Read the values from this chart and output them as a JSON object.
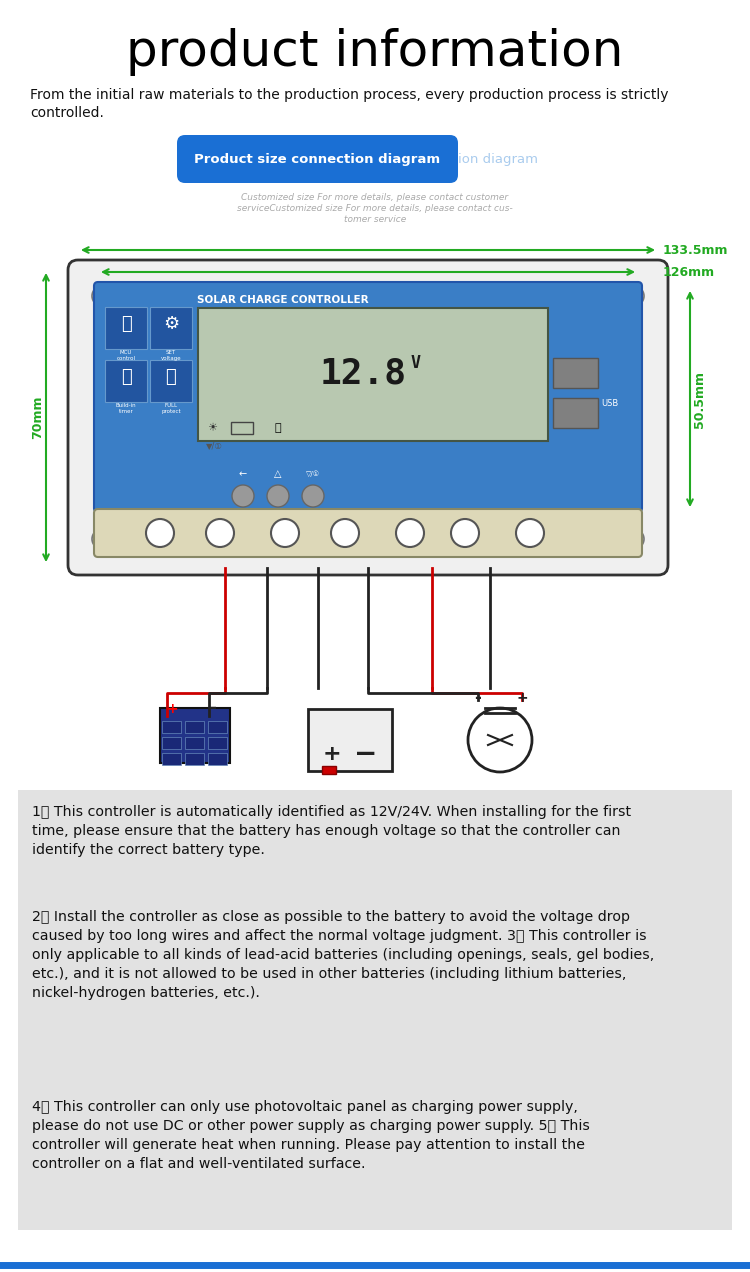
{
  "title": "product information",
  "title_fontsize": 36,
  "bg_color": "#ffffff",
  "intro_text": "From the initial raw materials to the production process, every production process is strictly\ncontrolled.",
  "button_text": "Product size connection diagram",
  "button_color": "#1a6fd4",
  "button_text_color": "#ffffff",
  "customized_text": "Customized size For more details, please contact customer\nserviceCustomized size For more details, please contact cus-\ntomer service",
  "dim_133": "133.5mm",
  "dim_126": "126mm",
  "dim_70": "70mm",
  "dim_50": "50.5mm",
  "info_box_bg": "#e2e2e2",
  "info_text_1": "1、 This controller is automatically identified as 12V/24V. When installing for the first\ntime, please ensure that the battery has enough voltage so that the controller can\nidentify the correct battery type.",
  "info_text_2": "2、 Install the controller as close as possible to the battery to avoid the voltage drop\ncaused by too long wires and affect the normal voltage judgment. 3、 This controller is\nonly applicable to all kinds of lead-acid batteries (including openings, seals, gel bodies,\netc.), and it is not allowed to be used in other batteries (including lithium batteries,\nnickel-hydrogen batteries, etc.).",
  "info_text_3": "4、 This controller can only use photovoltaic panel as charging power supply,\nplease do not use DC or other power supply as charging power supply. 5、 This\ncontroller will generate heat when running. Please pay attention to install the\ncontroller on a flat and well-ventilated surface.",
  "device_display_text": "12.8",
  "device_title": "SOLAR CHARGE CONTROLLER",
  "green_color": "#22aa22",
  "panel_blue": "#3a7ec6",
  "panel_edge": "#2255aa",
  "lcd_bg": "#b8c8b0"
}
